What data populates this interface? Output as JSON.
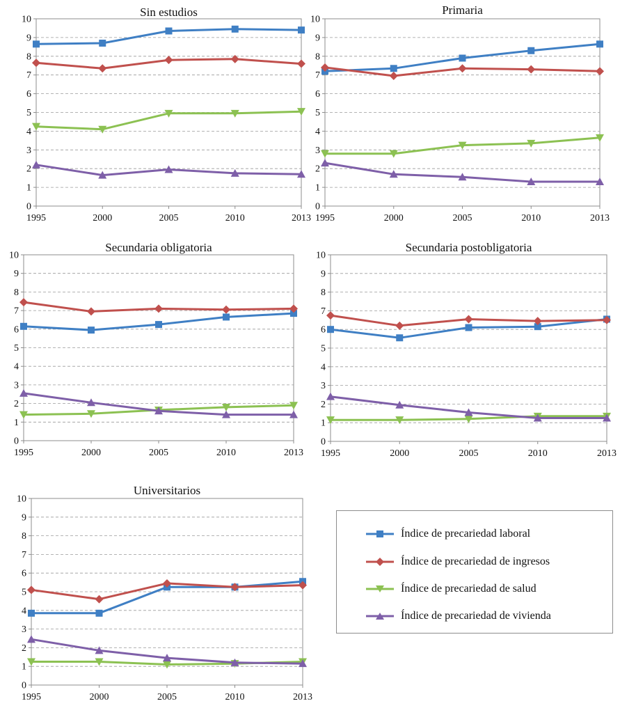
{
  "chart_data": [
    {
      "type": "line",
      "title": "Sin estudios",
      "x": [
        "1995",
        "2000",
        "2005",
        "2010",
        "2013"
      ],
      "ylim": [
        0,
        10
      ],
      "yticks": [
        "0",
        "1",
        "2",
        "3",
        "4",
        "5",
        "6",
        "7",
        "8",
        "9",
        "10"
      ],
      "grid": true,
      "series": [
        {
          "key": "laboral",
          "values": [
            8.65,
            8.7,
            9.35,
            9.45,
            9.4
          ]
        },
        {
          "key": "ingresos",
          "values": [
            7.65,
            7.35,
            7.8,
            7.85,
            7.6
          ]
        },
        {
          "key": "salud",
          "values": [
            4.25,
            4.1,
            4.95,
            4.95,
            5.05
          ]
        },
        {
          "key": "vivienda",
          "values": [
            2.2,
            1.65,
            1.95,
            1.75,
            1.7
          ]
        }
      ]
    },
    {
      "type": "line",
      "title": "Primaria",
      "x": [
        "1995",
        "2000",
        "2005",
        "2010",
        "2013"
      ],
      "ylim": [
        0,
        10
      ],
      "yticks": [
        "0",
        "1",
        "2",
        "3",
        "4",
        "5",
        "6",
        "7",
        "8",
        "9",
        "10"
      ],
      "grid": true,
      "series": [
        {
          "key": "laboral",
          "values": [
            7.2,
            7.35,
            7.9,
            8.3,
            8.65
          ]
        },
        {
          "key": "ingresos",
          "values": [
            7.4,
            6.95,
            7.35,
            7.3,
            7.2
          ]
        },
        {
          "key": "salud",
          "values": [
            2.8,
            2.8,
            3.25,
            3.35,
            3.65
          ]
        },
        {
          "key": "vivienda",
          "values": [
            2.3,
            1.7,
            1.55,
            1.3,
            1.3
          ]
        }
      ]
    },
    {
      "type": "line",
      "title": "Secundaria obligatoria",
      "x": [
        "1995",
        "2000",
        "2005",
        "2010",
        "2013"
      ],
      "ylim": [
        0,
        10
      ],
      "yticks": [
        "0",
        "1",
        "2",
        "3",
        "4",
        "5",
        "6",
        "7",
        "8",
        "9",
        "10"
      ],
      "grid": true,
      "series": [
        {
          "key": "laboral",
          "values": [
            6.15,
            5.95,
            6.25,
            6.65,
            6.85
          ]
        },
        {
          "key": "ingresos",
          "values": [
            7.45,
            6.95,
            7.1,
            7.05,
            7.1
          ]
        },
        {
          "key": "salud",
          "values": [
            1.4,
            1.45,
            1.65,
            1.8,
            1.9
          ]
        },
        {
          "key": "vivienda",
          "values": [
            2.55,
            2.05,
            1.6,
            1.4,
            1.4
          ]
        }
      ]
    },
    {
      "type": "line",
      "title": "Secundaria postobligatoria",
      "x": [
        "1995",
        "2000",
        "2005",
        "2010",
        "2013"
      ],
      "ylim": [
        0,
        10
      ],
      "yticks": [
        "0",
        "1",
        "2",
        "3",
        "4",
        "5",
        "6",
        "7",
        "8",
        "9",
        "10"
      ],
      "grid": true,
      "series": [
        {
          "key": "laboral",
          "values": [
            6.0,
            5.55,
            6.1,
            6.15,
            6.55
          ]
        },
        {
          "key": "ingresos",
          "values": [
            6.75,
            6.2,
            6.55,
            6.45,
            6.5
          ]
        },
        {
          "key": "salud",
          "values": [
            1.15,
            1.15,
            1.2,
            1.35,
            1.35
          ]
        },
        {
          "key": "vivienda",
          "values": [
            2.4,
            1.95,
            1.55,
            1.25,
            1.25
          ]
        }
      ]
    },
    {
      "type": "line",
      "title": "Universitarios",
      "x": [
        "1995",
        "2000",
        "2005",
        "2010",
        "2013"
      ],
      "ylim": [
        0,
        10
      ],
      "yticks": [
        "0",
        "1",
        "2",
        "3",
        "4",
        "5",
        "6",
        "7",
        "8",
        "9",
        "10"
      ],
      "grid": true,
      "series": [
        {
          "key": "laboral",
          "values": [
            3.85,
            3.85,
            5.25,
            5.25,
            5.55
          ]
        },
        {
          "key": "ingresos",
          "values": [
            5.1,
            4.6,
            5.45,
            5.25,
            5.35
          ]
        },
        {
          "key": "salud",
          "values": [
            1.25,
            1.25,
            1.1,
            1.15,
            1.25
          ]
        },
        {
          "key": "vivienda",
          "values": [
            2.45,
            1.85,
            1.45,
            1.2,
            1.15
          ]
        }
      ]
    }
  ],
  "legend": {
    "placement": "bottom-right",
    "items": [
      {
        "key": "laboral",
        "label": "Índice de precariedad laboral",
        "color": "#3f7fc4",
        "marker": "square"
      },
      {
        "key": "ingresos",
        "label": "Índice de precariedad de ingresos",
        "color": "#c0504d",
        "marker": "diamond"
      },
      {
        "key": "salud",
        "label": "Índice de precariedad de salud",
        "color": "#8cc152",
        "marker": "triangle-down"
      },
      {
        "key": "vivienda",
        "label": "Índice de precariedad de vivienda",
        "color": "#7e5fa8",
        "marker": "triangle-up"
      }
    ]
  }
}
